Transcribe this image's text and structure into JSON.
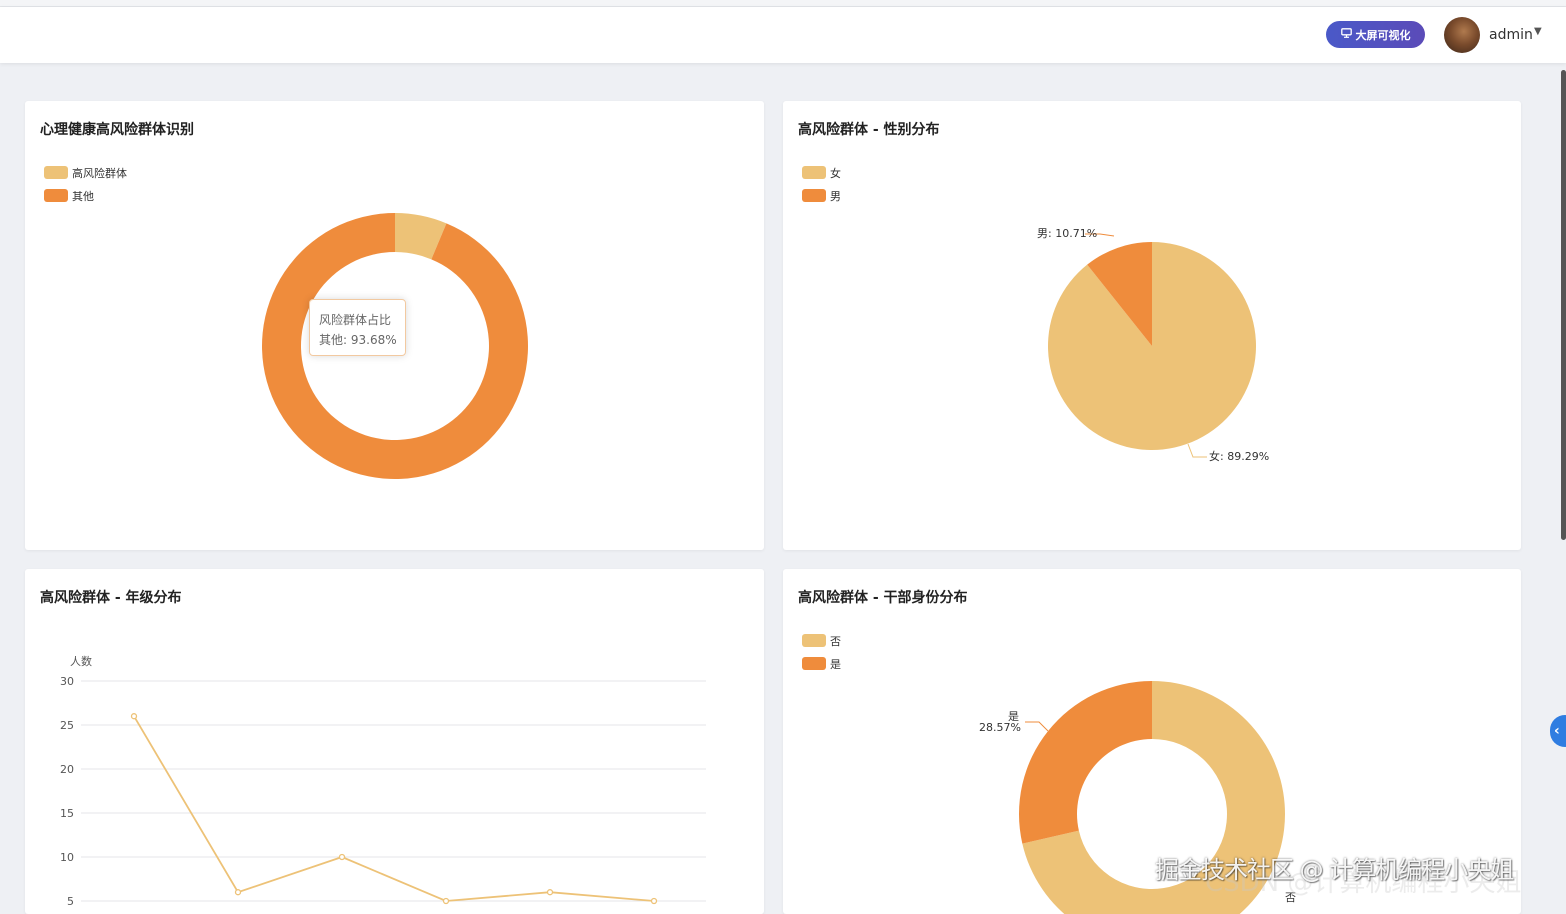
{
  "header": {
    "bigscreen_label": "大屏可视化",
    "username": "admin"
  },
  "colors": {
    "light": "#edc277",
    "dark": "#ef8c3c"
  },
  "cards": {
    "risk": {
      "title": "心理健康高风险群体识别",
      "legend": [
        "高风险群体",
        "其他"
      ],
      "tooltip_title": "风险群体占比",
      "tooltip_value": "其他: 93.68%"
    },
    "gender": {
      "title": "高风险群体 - 性别分布",
      "legend": [
        "女",
        "男"
      ],
      "label_male": "男: 10.71%",
      "label_female": "女: 89.29%"
    },
    "grade": {
      "title": "高风险群体 - 年级分布",
      "y_name": "人数"
    },
    "cadre": {
      "title": "高风险群体 - 干部身份分布",
      "legend": [
        "否",
        "是"
      ],
      "label_yes_name": "是",
      "label_yes_pct": "28.57%",
      "label_no_name": "否"
    }
  },
  "chart_data": [
    {
      "type": "pie",
      "title": "心理健康高风险群体识别",
      "labels": [
        "高风险群体",
        "其他"
      ],
      "values": [
        6.32,
        93.68
      ],
      "donut": true
    },
    {
      "type": "pie",
      "title": "高风险群体 - 性别分布",
      "labels": [
        "女",
        "男"
      ],
      "values": [
        89.29,
        10.71
      ]
    },
    {
      "type": "line",
      "title": "高风险群体 - 年级分布",
      "ylabel": "人数",
      "yticks": [
        5,
        10,
        15,
        20,
        25,
        30
      ],
      "ylim": [
        0,
        30
      ],
      "values": [
        26,
        6,
        10,
        5,
        6,
        5
      ]
    },
    {
      "type": "pie",
      "title": "高风险群体 - 干部身份分布",
      "labels": [
        "否",
        "是"
      ],
      "values": [
        71.43,
        28.57
      ],
      "donut": true
    }
  ],
  "watermark": "掘金技术社区 @ 计算机编程小央姐",
  "watermark2": "CSDN @计算机编程小央姐"
}
